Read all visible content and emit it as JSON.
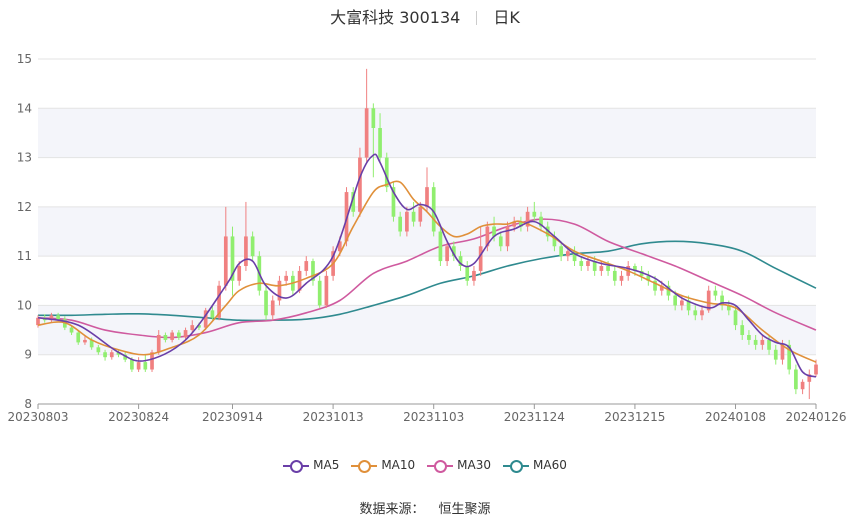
{
  "title": {
    "name": "大富科技 300134",
    "period": "日K"
  },
  "source": {
    "label": "数据来源：",
    "value": "恒生聚源"
  },
  "colors": {
    "up": "#f08080",
    "down": "#90ee6f",
    "ma5": "#6a3fa8",
    "ma10": "#e0903a",
    "ma30": "#cf5a9f",
    "ma60": "#2f8a8f",
    "band": "#f4f5fa",
    "grid": "#e3e3e3",
    "axis": "#999999"
  },
  "chart_data": {
    "type": "candlestick",
    "title": "大富科技 300134 日K",
    "ylim": [
      8,
      15
    ],
    "yticks": [
      8,
      9,
      10,
      11,
      12,
      13,
      14,
      15
    ],
    "xticks": [
      "20230803",
      "20230824",
      "20230914",
      "20231013",
      "20231103",
      "20231124",
      "20231215",
      "20240108",
      "20240126"
    ],
    "xtick_index": [
      0,
      15,
      29,
      44,
      59,
      74,
      89,
      104,
      116
    ],
    "legend": [
      "MA5",
      "MA10",
      "MA30",
      "MA60"
    ],
    "candles": [
      [
        9.6,
        9.75,
        9.55,
        9.8
      ],
      [
        9.75,
        9.7,
        9.65,
        9.82
      ],
      [
        9.7,
        9.8,
        9.65,
        9.85
      ],
      [
        9.8,
        9.72,
        9.68,
        9.85
      ],
      [
        9.72,
        9.55,
        9.5,
        9.78
      ],
      [
        9.55,
        9.45,
        9.4,
        9.6
      ],
      [
        9.45,
        9.25,
        9.2,
        9.5
      ],
      [
        9.25,
        9.3,
        9.2,
        9.4
      ],
      [
        9.3,
        9.15,
        9.1,
        9.35
      ],
      [
        9.15,
        9.05,
        9.0,
        9.2
      ],
      [
        9.05,
        8.95,
        8.88,
        9.1
      ],
      [
        8.95,
        9.05,
        8.9,
        9.1
      ],
      [
        9.05,
        9.0,
        8.95,
        9.1
      ],
      [
        9.0,
        8.9,
        8.85,
        9.05
      ],
      [
        8.9,
        8.7,
        8.65,
        8.95
      ],
      [
        8.7,
        8.85,
        8.65,
        8.95
      ],
      [
        8.85,
        8.7,
        8.65,
        9.0
      ],
      [
        8.7,
        9.05,
        8.65,
        9.1
      ],
      [
        9.05,
        9.4,
        9.0,
        9.5
      ],
      [
        9.4,
        9.3,
        9.25,
        9.45
      ],
      [
        9.3,
        9.45,
        9.25,
        9.5
      ],
      [
        9.45,
        9.35,
        9.3,
        9.5
      ],
      [
        9.35,
        9.5,
        9.3,
        9.55
      ],
      [
        9.5,
        9.6,
        9.45,
        9.7
      ],
      [
        9.6,
        9.55,
        9.5,
        9.65
      ],
      [
        9.55,
        9.9,
        9.5,
        9.95
      ],
      [
        9.9,
        9.75,
        9.7,
        10.0
      ],
      [
        9.75,
        10.4,
        9.7,
        10.5
      ],
      [
        10.4,
        11.4,
        10.3,
        12.0
      ],
      [
        11.4,
        10.5,
        10.2,
        11.6
      ],
      [
        10.5,
        10.8,
        10.4,
        10.9
      ],
      [
        10.8,
        11.4,
        10.7,
        12.1
      ],
      [
        11.4,
        11.0,
        10.9,
        11.5
      ],
      [
        11.0,
        10.3,
        10.2,
        11.1
      ],
      [
        10.3,
        9.8,
        9.7,
        10.4
      ],
      [
        9.8,
        10.1,
        9.7,
        10.2
      ],
      [
        10.1,
        10.5,
        10.0,
        10.6
      ],
      [
        10.5,
        10.6,
        10.4,
        10.7
      ],
      [
        10.6,
        10.3,
        10.2,
        10.7
      ],
      [
        10.3,
        10.7,
        10.25,
        10.8
      ],
      [
        10.7,
        10.9,
        10.6,
        11.0
      ],
      [
        10.9,
        10.5,
        10.4,
        10.95
      ],
      [
        10.5,
        10.0,
        9.95,
        10.6
      ],
      [
        10.0,
        10.6,
        9.95,
        10.7
      ],
      [
        10.6,
        11.1,
        10.5,
        11.2
      ],
      [
        11.1,
        11.3,
        11.0,
        11.4
      ],
      [
        11.3,
        12.3,
        11.2,
        12.4
      ],
      [
        12.3,
        11.9,
        11.8,
        12.4
      ],
      [
        11.9,
        13.0,
        11.8,
        13.2
      ],
      [
        13.0,
        14.0,
        12.9,
        14.8
      ],
      [
        14.0,
        13.6,
        12.6,
        14.1
      ],
      [
        13.6,
        13.0,
        12.9,
        13.9
      ],
      [
        13.0,
        12.4,
        12.3,
        13.1
      ],
      [
        12.4,
        11.8,
        11.7,
        12.5
      ],
      [
        11.8,
        11.5,
        11.4,
        11.9
      ],
      [
        11.5,
        11.9,
        11.4,
        12.0
      ],
      [
        11.9,
        11.7,
        11.6,
        12.1
      ],
      [
        11.7,
        12.0,
        11.6,
        12.1
      ],
      [
        12.0,
        12.4,
        11.9,
        12.8
      ],
      [
        12.4,
        11.5,
        11.4,
        12.5
      ],
      [
        11.5,
        10.9,
        10.8,
        11.6
      ],
      [
        10.9,
        11.2,
        10.8,
        11.3
      ],
      [
        11.2,
        11.0,
        10.9,
        11.3
      ],
      [
        11.0,
        10.8,
        10.7,
        11.1
      ],
      [
        10.8,
        10.5,
        10.4,
        10.9
      ],
      [
        10.5,
        10.7,
        10.4,
        10.8
      ],
      [
        10.7,
        11.2,
        10.6,
        11.6
      ],
      [
        11.2,
        11.6,
        11.1,
        11.7
      ],
      [
        11.6,
        11.4,
        11.3,
        11.8
      ],
      [
        11.4,
        11.2,
        11.1,
        11.5
      ],
      [
        11.2,
        11.6,
        11.1,
        11.7
      ],
      [
        11.6,
        11.7,
        11.5,
        11.8
      ],
      [
        11.7,
        11.6,
        11.5,
        11.8
      ],
      [
        11.6,
        11.9,
        11.5,
        12.0
      ],
      [
        11.9,
        11.8,
        11.7,
        12.1
      ],
      [
        11.8,
        11.6,
        11.5,
        11.9
      ],
      [
        11.6,
        11.4,
        11.3,
        11.7
      ],
      [
        11.4,
        11.2,
        11.1,
        11.5
      ],
      [
        11.2,
        11.0,
        10.9,
        11.3
      ],
      [
        11.0,
        11.1,
        10.9,
        11.2
      ],
      [
        11.1,
        10.9,
        10.8,
        11.2
      ],
      [
        10.9,
        10.8,
        10.7,
        11.0
      ],
      [
        10.8,
        10.9,
        10.7,
        11.0
      ],
      [
        10.9,
        10.7,
        10.6,
        11.0
      ],
      [
        10.7,
        10.8,
        10.6,
        10.9
      ],
      [
        10.8,
        10.7,
        10.6,
        10.9
      ],
      [
        10.7,
        10.5,
        10.4,
        10.8
      ],
      [
        10.5,
        10.6,
        10.4,
        10.7
      ],
      [
        10.6,
        10.8,
        10.5,
        10.9
      ],
      [
        10.8,
        10.7,
        10.6,
        10.85
      ],
      [
        10.7,
        10.6,
        10.5,
        10.8
      ],
      [
        10.6,
        10.5,
        10.4,
        10.7
      ],
      [
        10.5,
        10.3,
        10.2,
        10.6
      ],
      [
        10.3,
        10.4,
        10.2,
        10.5
      ],
      [
        10.4,
        10.2,
        10.1,
        10.5
      ],
      [
        10.2,
        10.0,
        9.9,
        10.3
      ],
      [
        10.0,
        10.1,
        9.9,
        10.2
      ],
      [
        10.1,
        9.9,
        9.8,
        10.2
      ],
      [
        9.9,
        9.8,
        9.7,
        10.0
      ],
      [
        9.8,
        9.9,
        9.7,
        10.0
      ],
      [
        9.9,
        10.3,
        9.85,
        10.4
      ],
      [
        10.3,
        10.2,
        10.1,
        10.4
      ],
      [
        10.2,
        10.0,
        9.9,
        10.3
      ],
      [
        10.0,
        9.9,
        9.8,
        10.1
      ],
      [
        9.9,
        9.6,
        9.5,
        10.0
      ],
      [
        9.6,
        9.4,
        9.3,
        9.7
      ],
      [
        9.4,
        9.3,
        9.2,
        9.5
      ],
      [
        9.3,
        9.2,
        9.1,
        9.4
      ],
      [
        9.2,
        9.3,
        9.1,
        9.4
      ],
      [
        9.3,
        9.1,
        9.0,
        9.4
      ],
      [
        9.1,
        8.9,
        8.8,
        9.2
      ],
      [
        8.9,
        9.2,
        8.8,
        9.3
      ],
      [
        9.2,
        8.7,
        8.6,
        9.3
      ],
      [
        8.7,
        8.3,
        8.2,
        8.8
      ],
      [
        8.3,
        8.45,
        8.2,
        8.5
      ],
      [
        8.45,
        8.6,
        8.1,
        8.7
      ],
      [
        8.6,
        8.8,
        8.55,
        8.9
      ]
    ],
    "ma": {
      "MA5": {
        "days": [
          0,
          6,
          12,
          16,
          22,
          28,
          30,
          32,
          34,
          37,
          40,
          44,
          48,
          50,
          51,
          53,
          55,
          57,
          59,
          61,
          63,
          65,
          68,
          71,
          74,
          77,
          80,
          84,
          88,
          92,
          96,
          100,
          102,
          104,
          106,
          108,
          110,
          112,
          114,
          116
        ],
        "vals": [
          9.75,
          9.6,
          9.05,
          8.88,
          9.3,
          10.4,
          10.85,
          10.9,
          10.4,
          10.15,
          10.45,
          11.0,
          12.6,
          13.05,
          12.9,
          12.3,
          11.95,
          12.05,
          11.9,
          11.3,
          10.85,
          10.85,
          11.4,
          11.55,
          11.7,
          11.4,
          11.05,
          10.85,
          10.75,
          10.55,
          10.15,
          9.95,
          10.05,
          10.0,
          9.7,
          9.4,
          9.25,
          9.15,
          8.65,
          8.55
        ]
      },
      "MA10": {
        "days": [
          0,
          4,
          8,
          12,
          16,
          20,
          24,
          28,
          30,
          33,
          36,
          40,
          44,
          47,
          50,
          52,
          54,
          56,
          58,
          60,
          62,
          64,
          66,
          68,
          70,
          72,
          76,
          80,
          84,
          88,
          92,
          96,
          100,
          104,
          108,
          112,
          116
        ],
        "vals": [
          9.6,
          9.65,
          9.3,
          9.1,
          9.0,
          9.15,
          9.4,
          10.0,
          10.3,
          10.45,
          10.4,
          10.55,
          10.85,
          11.6,
          12.3,
          12.45,
          12.5,
          12.15,
          11.9,
          11.6,
          11.4,
          11.45,
          11.6,
          11.65,
          11.65,
          11.7,
          11.45,
          11.1,
          10.9,
          10.7,
          10.45,
          10.2,
          10.05,
          9.95,
          9.5,
          9.1,
          8.85
        ]
      },
      "MA30": {
        "days": [
          0,
          5,
          10,
          15,
          20,
          25,
          30,
          35,
          40,
          45,
          50,
          55,
          60,
          65,
          70,
          75,
          80,
          85,
          90,
          95,
          100,
          105,
          110,
          116
        ],
        "vals": [
          9.75,
          9.7,
          9.5,
          9.4,
          9.35,
          9.45,
          9.65,
          9.7,
          9.85,
          10.1,
          10.65,
          10.9,
          11.2,
          11.35,
          11.6,
          11.75,
          11.65,
          11.3,
          11.05,
          10.8,
          10.5,
          10.2,
          9.85,
          9.5
        ]
      },
      "MA60": {
        "days": [
          0,
          5,
          10,
          15,
          20,
          25,
          30,
          35,
          40,
          45,
          50,
          55,
          60,
          65,
          70,
          75,
          80,
          85,
          90,
          95,
          100,
          105,
          110,
          116
        ],
        "vals": [
          9.8,
          9.8,
          9.82,
          9.83,
          9.8,
          9.75,
          9.7,
          9.7,
          9.72,
          9.82,
          10.0,
          10.2,
          10.45,
          10.6,
          10.8,
          10.95,
          11.05,
          11.1,
          11.25,
          11.3,
          11.25,
          11.1,
          10.75,
          10.35
        ]
      }
    }
  }
}
